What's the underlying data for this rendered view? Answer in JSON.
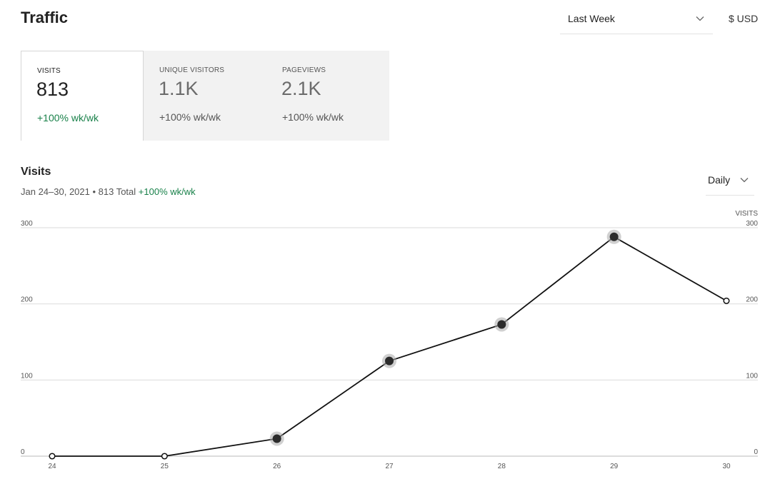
{
  "header": {
    "title": "Traffic",
    "range_label": "Last Week",
    "currency_label": "$ USD"
  },
  "metrics": [
    {
      "label": "VISITS",
      "value": "813",
      "change": "+100% wk/wk",
      "active": true
    },
    {
      "label": "UNIQUE VISITORS",
      "value": "1.1K",
      "change": "+100% wk/wk",
      "active": false
    },
    {
      "label": "PAGEVIEWS",
      "value": "2.1K",
      "change": "+100% wk/wk",
      "active": false
    }
  ],
  "section": {
    "title": "Visits",
    "subtitle_prefix": "Jan 24–30, 2021 • 813 Total ",
    "subtitle_change": "+100% wk/wk",
    "interval_label": "Daily"
  },
  "colors": {
    "line": "#111111",
    "positive": "#19814a",
    "grid": "#e6e6e6",
    "point_halo": "#aaaaaa"
  },
  "chart_data": {
    "type": "line",
    "x": [
      "24",
      "25",
      "26",
      "27",
      "28",
      "29",
      "30"
    ],
    "series": [
      {
        "values": [
          0,
          0,
          23,
          125,
          173,
          288,
          204
        ]
      }
    ],
    "ylim": [
      0,
      300
    ],
    "yticks": [
      0,
      100,
      200,
      300
    ],
    "right_axis_label": "VISITS",
    "grid": true,
    "title": "",
    "xlabel": "",
    "ylabel": ""
  }
}
